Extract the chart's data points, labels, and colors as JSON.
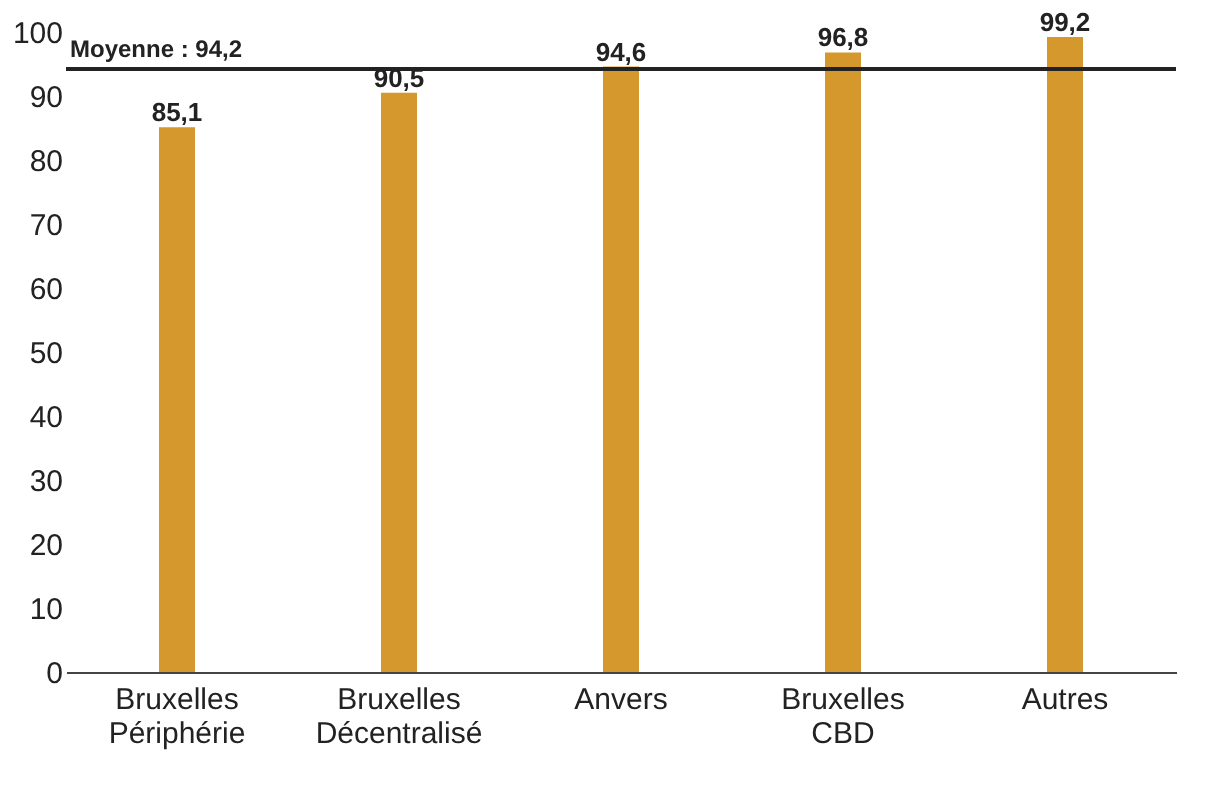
{
  "chart_data": {
    "type": "bar",
    "categories": [
      "Bruxelles\nPériphérie",
      "Bruxelles\nDécentralisé",
      "Anvers",
      "Bruxelles\nCBD",
      "Autres"
    ],
    "values": [
      85.1,
      90.5,
      94.6,
      96.8,
      99.2
    ],
    "value_labels": [
      "85,1",
      "90,5",
      "94,6",
      "96,8",
      "99,2"
    ],
    "color": "#d4982c",
    "ylim": [
      0,
      100
    ],
    "yticks": [
      0,
      10,
      20,
      30,
      40,
      50,
      60,
      70,
      80,
      90,
      100
    ],
    "grid": false,
    "ref_lines": [
      {
        "axis": "y",
        "value": 94.2,
        "label": "Moyenne : 94,2",
        "color": "#222222"
      }
    ]
  }
}
